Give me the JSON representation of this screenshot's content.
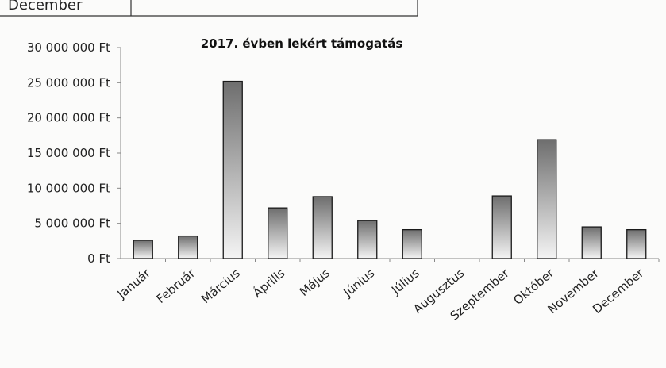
{
  "header_table": {
    "row_label": "December",
    "row_value": ""
  },
  "chart_data": {
    "type": "bar",
    "title": "2017. évben lekért támogatás",
    "xlabel": "",
    "ylabel": "",
    "ylim": [
      0,
      30000000
    ],
    "y_ticks": [
      0,
      5000000,
      10000000,
      15000000,
      20000000,
      25000000,
      30000000
    ],
    "y_tick_labels": [
      "0 Ft",
      "5 000 000 Ft",
      "10 000 000 Ft",
      "15 000 000 Ft",
      "20 000 000 Ft",
      "25 000 000 Ft",
      "30 000 000 Ft"
    ],
    "categories": [
      "Január",
      "Február",
      "Március",
      "Április",
      "Május",
      "Június",
      "Július",
      "Augusztus",
      "Szeptember",
      "Október",
      "November",
      "December"
    ],
    "values": [
      2600000,
      3200000,
      25200000,
      7200000,
      8800000,
      5400000,
      4100000,
      0,
      8900000,
      16900000,
      4500000,
      4100000
    ],
    "grid": false,
    "legend": "none",
    "bar_gradient_top": "#6e6e6e",
    "bar_gradient_bottom": "#f4f4f4",
    "bar_outline": "#1a1a1a"
  }
}
